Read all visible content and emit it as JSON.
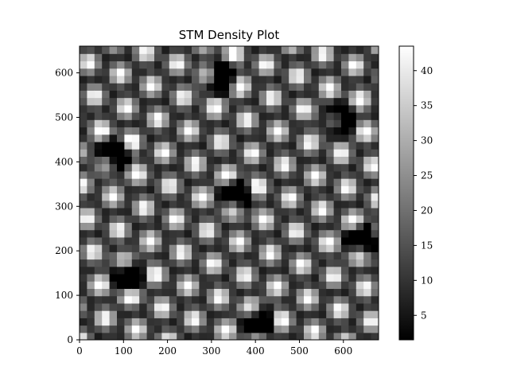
{
  "chart_data": {
    "type": "heatmap",
    "title": "STM Density Plot",
    "xlabel": "",
    "ylabel": "",
    "xlim": [
      0,
      680
    ],
    "ylim": [
      0,
      660
    ],
    "xticks": [
      0,
      100,
      200,
      300,
      400,
      500,
      600
    ],
    "yticks": [
      0,
      100,
      200,
      300,
      400,
      500,
      600
    ],
    "colormap": "gray",
    "colorbar": {
      "range": [
        1.5,
        43.5
      ],
      "ticks": [
        5,
        10,
        15,
        20,
        25,
        30,
        35,
        40
      ]
    },
    "dark_hole_centers": [
      [
        320,
        590
      ],
      [
        590,
        495
      ],
      [
        75,
        415
      ],
      [
        355,
        325
      ],
      [
        640,
        225
      ],
      [
        110,
        145
      ],
      [
        405,
        40
      ]
    ],
    "features": "hexagonal lattice of bright atoms; dark holes ringed by bright sites, linked by bright dimer bridges"
  }
}
